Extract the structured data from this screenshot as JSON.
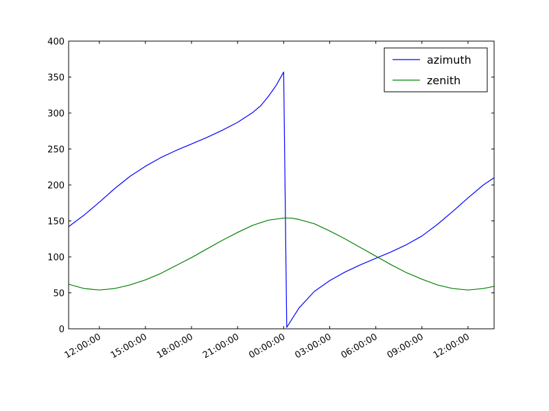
{
  "chart_data": {
    "type": "line",
    "title": "",
    "xlabel": "",
    "ylabel": "",
    "ylim": [
      0,
      400
    ],
    "xlim_hours": [
      10.0,
      37.7
    ],
    "yticks": [
      0,
      50,
      100,
      150,
      200,
      250,
      300,
      350,
      400
    ],
    "x_tick_labels": [
      "12:00:00",
      "15:00:00",
      "18:00:00",
      "21:00:00",
      "00:00:00",
      "03:00:00",
      "06:00:00",
      "09:00:00",
      "12:00:00"
    ],
    "x_tick_hours": [
      12,
      15,
      18,
      21,
      24,
      27,
      30,
      33,
      36
    ],
    "legend_position": "top-right",
    "grid": false,
    "series": [
      {
        "name": "azimuth",
        "color": "#0000ff",
        "points": [
          [
            10.0,
            142
          ],
          [
            11.0,
            158
          ],
          [
            12.0,
            176
          ],
          [
            13.0,
            195
          ],
          [
            14.0,
            212
          ],
          [
            15.0,
            226
          ],
          [
            16.0,
            238
          ],
          [
            17.0,
            248
          ],
          [
            18.0,
            257
          ],
          [
            19.0,
            266
          ],
          [
            20.0,
            276
          ],
          [
            21.0,
            287
          ],
          [
            22.0,
            301
          ],
          [
            22.5,
            310
          ],
          [
            23.0,
            323
          ],
          [
            23.5,
            338
          ],
          [
            24.0,
            357
          ],
          [
            24.2,
            2
          ],
          [
            25.0,
            29
          ],
          [
            26.0,
            52
          ],
          [
            27.0,
            67
          ],
          [
            28.0,
            79
          ],
          [
            29.0,
            89
          ],
          [
            30.0,
            98
          ],
          [
            31.0,
            107
          ],
          [
            32.0,
            117
          ],
          [
            33.0,
            129
          ],
          [
            34.0,
            145
          ],
          [
            35.0,
            163
          ],
          [
            36.0,
            182
          ],
          [
            37.0,
            200
          ],
          [
            37.7,
            210
          ]
        ]
      },
      {
        "name": "zenith",
        "color": "#008000",
        "points": [
          [
            10.0,
            62
          ],
          [
            11.0,
            56
          ],
          [
            12.0,
            54
          ],
          [
            13.0,
            56
          ],
          [
            14.0,
            61
          ],
          [
            15.0,
            68
          ],
          [
            16.0,
            77
          ],
          [
            17.0,
            88
          ],
          [
            18.0,
            99
          ],
          [
            19.0,
            111
          ],
          [
            20.0,
            123
          ],
          [
            21.0,
            134
          ],
          [
            22.0,
            144
          ],
          [
            23.0,
            151
          ],
          [
            24.0,
            154
          ],
          [
            24.5,
            154
          ],
          [
            25.0,
            152
          ],
          [
            26.0,
            146
          ],
          [
            27.0,
            136
          ],
          [
            28.0,
            125
          ],
          [
            29.0,
            113
          ],
          [
            30.0,
            101
          ],
          [
            31.0,
            89
          ],
          [
            32.0,
            78
          ],
          [
            33.0,
            69
          ],
          [
            34.0,
            61
          ],
          [
            35.0,
            56
          ],
          [
            36.0,
            54
          ],
          [
            37.0,
            56
          ],
          [
            37.7,
            59
          ]
        ]
      }
    ]
  }
}
